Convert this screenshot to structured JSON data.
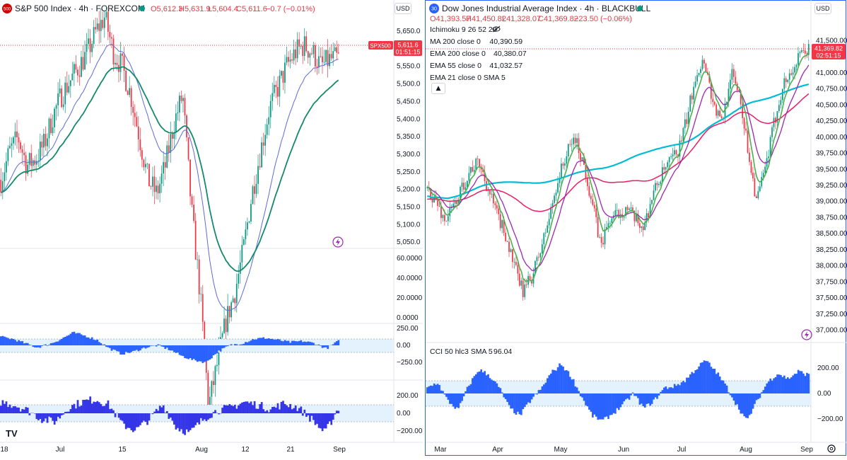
{
  "left_panel": {
    "symbol_badge": "500",
    "title": "S&P 500 Index · 4h · FOREXCOM",
    "ohlc": {
      "open": "O5,612.3",
      "high": "H5,631.9",
      "low": "L5,604.4",
      "close": "C5,611.6",
      "change": "−0.7 (−0.01%)"
    },
    "currency": "USD",
    "price_tag": {
      "symbol": "SPX500",
      "price": "5,611.6",
      "countdown": "01:51:15"
    },
    "price_axis_labels": [
      "5,650.0",
      "5,600.0",
      "5,550.0",
      "5,500.0",
      "5,450.0",
      "5,400.0",
      "5,350.0",
      "5,300.0",
      "5,250.0",
      "5,200.0",
      "5,150.0",
      "5,100.0",
      "5,050.0"
    ],
    "pane2_axis_labels": [
      "60.0000",
      "40.0000",
      "20.0000",
      "0.0000"
    ],
    "pane3_axis_labels": [
      "250.00",
      "0.00",
      "−250.00"
    ],
    "pane4_axis_labels": [
      "200.00",
      "0.00",
      "−200.00"
    ],
    "date_labels": [
      "18",
      "Jul",
      "15",
      "Aug",
      "12",
      "21",
      "Sep"
    ],
    "logo": "TV"
  },
  "right_panel": {
    "symbol_badge": "30",
    "title": "Dow Jones Industrial Average Index · 4h · BLACKBULL",
    "ohlc": {
      "open": "O41,393.57",
      "high": "H41,450.82",
      "low": "L41,328.07",
      "close": "C41,369.82",
      "change": "−23.50 (−0.06%)"
    },
    "currency": "USD",
    "price_tag": {
      "price": "41,369.82",
      "countdown": "02:51:15"
    },
    "indicators": [
      {
        "name": "Ichimoku 9 26 52 26",
        "value": ""
      },
      {
        "name": "MA 200 close 0",
        "value": "40,390.59",
        "color": "#00bcd4"
      },
      {
        "name": "EMA 200 close 0",
        "value": "40,380.07",
        "color": "#e91e63"
      },
      {
        "name": "EMA 55 close 0",
        "value": "41,032.57",
        "color": "#9c27b0"
      },
      {
        "name": "EMA 21 close 0 SMA 5",
        "value": "",
        "color": "#4caf50"
      }
    ],
    "price_axis_labels": [
      "41,500.00",
      "41,000.00",
      "40,750.00",
      "40,500.00",
      "40,250.00",
      "40,000.00",
      "39,750.00",
      "39,500.00",
      "39,250.00",
      "39,000.00",
      "38,750.00",
      "38,500.00",
      "38,250.00",
      "38,000.00",
      "37,750.00",
      "37,500.00",
      "37,250.00",
      "37,000.00"
    ],
    "cci": {
      "name": "CCI 50 hlc3 SMA 5",
      "value": "96.04"
    },
    "cci_axis_labels": [
      "200.00",
      "0.00",
      "−200.00"
    ],
    "date_labels": [
      "Mar",
      "Apr",
      "May",
      "Jun",
      "Jul",
      "Aug",
      "Sep"
    ]
  },
  "colors": {
    "up": "#089981",
    "down": "#f23645",
    "ma200": "#00bcd4",
    "ema200": "#e91e63",
    "ema55": "#9c27b0",
    "ema21": "#4caf50",
    "histogram": "#2962ff",
    "border_active": "#2962ff"
  },
  "chart_data": [
    {
      "type": "candlestick",
      "title": "S&P 500 Index · 4h · FOREXCOM",
      "x_range": [
        "Jun 18",
        "Sep"
      ],
      "ylim": [
        5050,
        5680
      ],
      "series": [
        {
          "name": "price close (approx)",
          "values": [
            5440,
            5480,
            5500,
            5460,
            5470,
            5490,
            5530,
            5560,
            5580,
            5600,
            5620,
            5650,
            5670,
            5620,
            5600,
            5560,
            5500,
            5440,
            5420,
            5460,
            5520,
            5560,
            5400,
            5280,
            5120,
            5180,
            5240,
            5280,
            5340,
            5420,
            5480,
            5540,
            5570,
            5600,
            5620,
            5630,
            5620,
            5600,
            5610,
            5611.6
          ]
        }
      ],
      "last_value": 5611.6
    },
    {
      "type": "candlestick",
      "title": "Dow Jones Industrial Average Index · 4h · BLACKBULL",
      "x_range": [
        "Feb",
        "Sep"
      ],
      "ylim": [
        37000,
        41650
      ],
      "series": [
        {
          "name": "price close (approx)",
          "values": [
            39200,
            39000,
            38700,
            38900,
            39200,
            39500,
            39600,
            39200,
            38800,
            38500,
            38000,
            37600,
            37800,
            38200,
            38700,
            39300,
            39700,
            40000,
            39600,
            39000,
            38300,
            38700,
            38800,
            38900,
            38700,
            38600,
            39100,
            39400,
            39600,
            39800,
            40300,
            41000,
            41200,
            40500,
            40200,
            41000,
            40700,
            39800,
            39000,
            39500,
            40200,
            40800,
            41000,
            41250,
            41369.82
          ]
        },
        {
          "name": "MA 200 close 0",
          "last_value": 40390.59
        },
        {
          "name": "EMA 200 close 0",
          "last_value": 40380.07
        },
        {
          "name": "EMA 55 close 0",
          "last_value": 41032.57
        }
      ],
      "last_value": 41369.82
    }
  ]
}
